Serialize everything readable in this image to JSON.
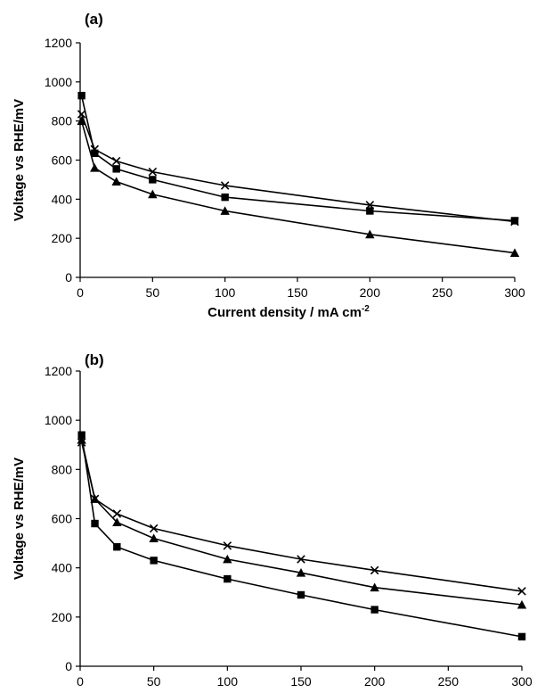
{
  "chart_data": [
    {
      "type": "line",
      "panel_label": "(a)",
      "xlabel": "Current density / mA cm",
      "xlabel_superscript": "-2",
      "ylabel": "Voltage vs RHE/mV",
      "xlim": [
        0,
        300
      ],
      "ylim": [
        0,
        1200
      ],
      "xticks": [
        0,
        50,
        100,
        150,
        200,
        250,
        300
      ],
      "yticks": [
        0,
        200,
        400,
        600,
        800,
        1000,
        1200
      ],
      "grid": false,
      "series": [
        {
          "marker": "square",
          "x": [
            1,
            10,
            25,
            50,
            100,
            200,
            300
          ],
          "y": [
            930,
            635,
            555,
            500,
            410,
            340,
            290
          ]
        },
        {
          "marker": "triangle",
          "x": [
            1,
            10,
            25,
            50,
            100,
            200,
            300
          ],
          "y": [
            800,
            560,
            490,
            425,
            340,
            220,
            125
          ]
        },
        {
          "marker": "x",
          "x": [
            1,
            10,
            25,
            50,
            100,
            200,
            300
          ],
          "y": [
            835,
            655,
            595,
            540,
            470,
            370,
            285
          ]
        }
      ]
    },
    {
      "type": "line",
      "panel_label": "(b)",
      "xlabel": "Current density / mA cm",
      "xlabel_superscript": "-2",
      "ylabel": "Voltage vs RHE/mV",
      "xlim": [
        0,
        300
      ],
      "ylim": [
        0,
        1200
      ],
      "xticks": [
        0,
        50,
        100,
        150,
        200,
        250,
        300
      ],
      "yticks": [
        0,
        200,
        400,
        600,
        800,
        1000,
        1200
      ],
      "grid": false,
      "series": [
        {
          "marker": "square",
          "x": [
            1,
            10,
            25,
            50,
            100,
            150,
            200,
            300
          ],
          "y": [
            940,
            580,
            485,
            430,
            355,
            290,
            230,
            120
          ]
        },
        {
          "marker": "triangle",
          "x": [
            1,
            10,
            25,
            50,
            100,
            150,
            200,
            300
          ],
          "y": [
            920,
            680,
            585,
            520,
            435,
            380,
            320,
            250
          ]
        },
        {
          "marker": "x",
          "x": [
            1,
            10,
            25,
            50,
            100,
            150,
            200,
            300
          ],
          "y": [
            910,
            680,
            620,
            560,
            490,
            435,
            390,
            305
          ]
        }
      ]
    }
  ]
}
